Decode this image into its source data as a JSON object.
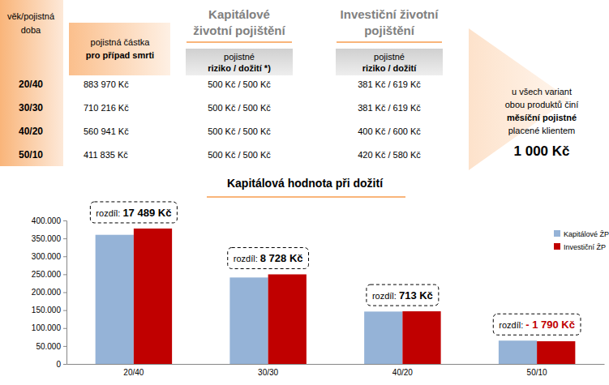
{
  "table": {
    "corner_header": [
      "věk/pojistná",
      "doba"
    ],
    "sum_header": [
      "pojistná částka",
      "pro případ smrti"
    ],
    "products": [
      {
        "title": [
          "Kapitálové",
          "životní pojištění"
        ],
        "subheader": [
          "pojistné",
          "riziko / dožití *)"
        ]
      },
      {
        "title": [
          "Investiční životní",
          "pojištění"
        ],
        "subheader": [
          "pojistné",
          "riziko / dožití"
        ]
      }
    ],
    "rows": [
      {
        "term": "20/40",
        "sum": "883 970 Kč",
        "premiums": [
          "500 Kč / 500 Kč",
          "381 Kč / 619 Kč"
        ]
      },
      {
        "term": "30/30",
        "sum": "710 216 Kč",
        "premiums": [
          "500 Kč / 500 Kč",
          "381 Kč / 619 Kč"
        ]
      },
      {
        "term": "40/20",
        "sum": "560 941 Kč",
        "premiums": [
          "500 Kč / 500 Kč",
          "400 Kč / 600 Kč"
        ]
      },
      {
        "term": "50/10",
        "sum": "411 835 Kč",
        "premiums": [
          "500 Kč / 500 Kč",
          "420 Kč / 580 Kč"
        ]
      }
    ]
  },
  "note": {
    "lines": [
      "u všech variant",
      "obou produktů činí",
      "měsíční pojistné",
      "placené klientem"
    ],
    "amount": "1 000 Kč"
  },
  "chart_data": {
    "type": "bar",
    "title": "Kapitálová hodnota při dožití",
    "categories": [
      "20/40",
      "30/30",
      "40/20",
      "50/10"
    ],
    "series": [
      {
        "name": "Kapitálové ŽP",
        "color": "#95b3d7",
        "values": [
          360000,
          241000,
          146000,
          65000
        ]
      },
      {
        "name": "Investiční ŽP",
        "color": "#c00000",
        "values": [
          377489,
          249728,
          146713,
          63210
        ]
      }
    ],
    "ylim": [
      0,
      400000
    ],
    "yticks": [
      0,
      {
        "value": 50000,
        "label": "50.000"
      },
      {
        "value": 100000,
        "label": "100.000"
      },
      {
        "value": 150000,
        "label": "150.000"
      },
      {
        "value": 200000,
        "label": "200.000"
      },
      {
        "value": 250000,
        "label": "250.000"
      },
      {
        "value": 300000,
        "label": "300.000"
      },
      {
        "value": 350000,
        "label": "350.000"
      },
      {
        "value": 400000,
        "label": "400.000"
      }
    ],
    "grid": false,
    "legend": "top-right",
    "data_labels": false,
    "annotations": [
      {
        "category": "20/40",
        "label": "rozdíl:",
        "text": "17 489 Kč"
      },
      {
        "category": "30/30",
        "label": "rozdíl:",
        "text": "8 728 Kč"
      },
      {
        "category": "40/20",
        "label": "rozdíl:",
        "text": "713 Kč"
      },
      {
        "category": "50/10",
        "label": "rozdíl:",
        "text": "- 1 790 Kč",
        "color": "#c00000"
      }
    ]
  }
}
